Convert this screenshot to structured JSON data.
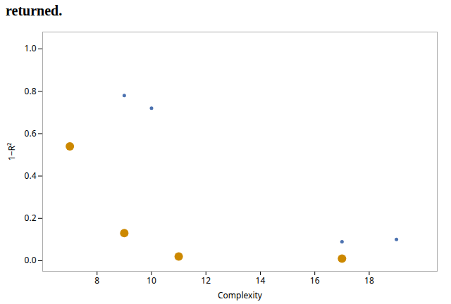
{
  "chart_data": {
    "type": "scatter",
    "title": "returned.",
    "xlabel": "Complexity",
    "ylabel": "1−R²",
    "series": [
      {
        "color": "#CC8800",
        "x": [
          7,
          9,
          11,
          17
        ],
        "values": [
          0.54,
          0.13,
          0.02,
          0.01
        ]
      },
      {
        "color": "#4C72B0",
        "x": [
          9,
          10,
          17,
          19
        ],
        "values": [
          0.78,
          0.72,
          0.09,
          0.1
        ]
      }
    ],
    "xlim": [
      6.0,
      20.5
    ],
    "ylim": [
      -0.05,
      1.08
    ],
    "xticks": [
      8,
      10,
      12,
      14,
      16,
      18
    ],
    "yticks": [
      {
        "value": 0.0,
        "label": "0.0"
      },
      0.2,
      0.4,
      0.6,
      0.8,
      {
        "value": 1.0,
        "label": "1.0"
      }
    ],
    "grid": false
  }
}
